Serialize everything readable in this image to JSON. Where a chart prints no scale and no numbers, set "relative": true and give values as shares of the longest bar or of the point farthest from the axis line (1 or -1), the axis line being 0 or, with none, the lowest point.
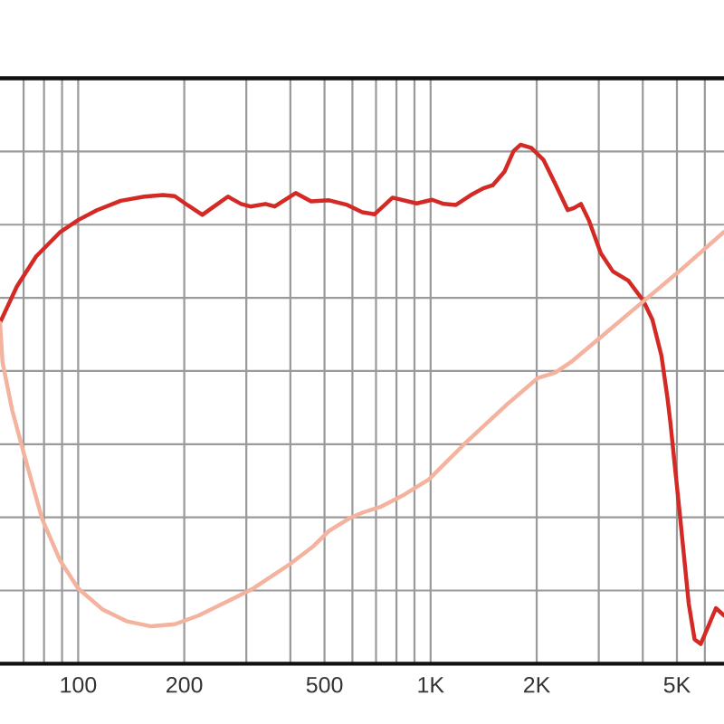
{
  "chart_data": {
    "type": "line",
    "relative": true,
    "log": "x",
    "grid": true,
    "xlim": [
      60,
      6800
    ],
    "xticks": [
      {
        "value": 70,
        "label": null
      },
      {
        "value": 80,
        "label": null
      },
      {
        "value": 90,
        "label": null
      },
      100,
      200,
      {
        "value": 300,
        "label": null
      },
      {
        "value": 400,
        "label": null
      },
      500,
      {
        "value": 600,
        "label": null
      },
      {
        "value": 700,
        "label": null
      },
      {
        "value": 800,
        "label": null
      },
      {
        "value": 900,
        "label": null
      },
      {
        "value": 1000,
        "label": "1K"
      },
      {
        "value": 2000,
        "label": "2K"
      },
      {
        "value": 3000,
        "label": null
      },
      {
        "value": 4000,
        "label": null
      },
      {
        "value": 5000,
        "label": "5K"
      },
      {
        "value": 6000,
        "label": null
      }
    ],
    "series": [
      {
        "color": "#d42a26",
        "x": [
          60,
          67,
          76,
          89,
          100,
          113,
          132,
          154,
          174,
          188,
          204,
          225,
          243,
          266,
          290,
          308,
          340,
          361,
          414,
          458,
          515,
          580,
          640,
          693,
          780,
          913,
          1010,
          1090,
          1180,
          1300,
          1410,
          1500,
          1620,
          1720,
          1800,
          1930,
          2090,
          2260,
          2450,
          2550,
          2670,
          2810,
          3040,
          3290,
          3640,
          4010,
          4260,
          4520,
          4700,
          4790,
          5090,
          5400,
          5610,
          5840,
          6120,
          6450,
          6800
        ],
        "values": [
          0.657,
          0.727,
          0.785,
          0.832,
          0.855,
          0.874,
          0.892,
          0.9,
          0.903,
          0.901,
          0.884,
          0.865,
          0.881,
          0.9,
          0.886,
          0.881,
          0.886,
          0.881,
          0.907,
          0.891,
          0.893,
          0.884,
          0.87,
          0.866,
          0.898,
          0.887,
          0.894,
          0.886,
          0.884,
          0.903,
          0.916,
          0.922,
          0.948,
          0.988,
          1.0,
          0.994,
          0.971,
          0.924,
          0.874,
          0.878,
          0.886,
          0.855,
          0.791,
          0.756,
          0.738,
          0.7,
          0.663,
          0.593,
          0.512,
          0.465,
          0.291,
          0.116,
          0.047,
          0.038,
          0.07,
          0.107,
          0.093
        ]
      },
      {
        "color": "#f4b39e",
        "x": [
          60,
          61,
          65,
          70,
          79,
          89,
          100,
          117,
          137,
          161,
          188,
          220,
          258,
          314,
          399,
          466,
          515,
          591,
          640,
          720,
          843,
          988,
          1250,
          1650,
          2010,
          2260,
          2500,
          3100,
          4010,
          5190,
          6800
        ],
        "values": [
          0.657,
          0.581,
          0.488,
          0.407,
          0.279,
          0.198,
          0.145,
          0.105,
          0.082,
          0.072,
          0.076,
          0.093,
          0.116,
          0.145,
          0.192,
          0.227,
          0.256,
          0.281,
          0.291,
          0.302,
          0.326,
          0.355,
          0.424,
          0.5,
          0.55,
          0.561,
          0.581,
          0.634,
          0.698,
          0.762,
          0.832
        ]
      }
    ]
  }
}
